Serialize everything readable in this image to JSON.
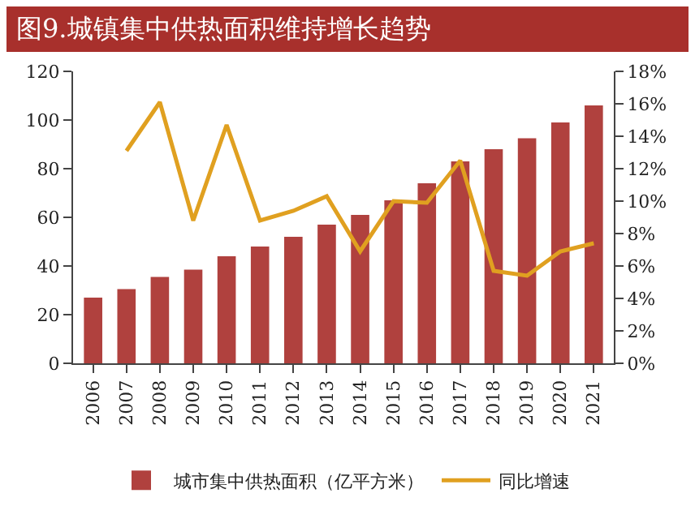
{
  "chart_data": {
    "type": "bar",
    "title": "图9.城镇集中供热面积维持增长趋势",
    "categories": [
      "2006",
      "2007",
      "2008",
      "2009",
      "2010",
      "2011",
      "2012",
      "2013",
      "2014",
      "2015",
      "2016",
      "2017",
      "2018",
      "2019",
      "2020",
      "2021"
    ],
    "series": [
      {
        "name": "城市集中供热面积（亿平方米）",
        "color": "#b0413e",
        "values": [
          27,
          30.5,
          35.5,
          38.5,
          44,
          48,
          52,
          57,
          61,
          67,
          74,
          83,
          88,
          92.5,
          99,
          106
        ]
      },
      {
        "name": "同比增速",
        "type": "line",
        "axis": "y2",
        "color": "#e0a020",
        "marker": "none",
        "values": [
          null,
          13.1,
          16.1,
          8.8,
          14.7,
          8.8,
          9.4,
          10.3,
          6.9,
          10.0,
          9.9,
          12.5,
          5.7,
          5.4,
          6.9,
          7.4
        ]
      }
    ],
    "ylim": [
      0,
      120
    ],
    "yticks": [
      0,
      20,
      40,
      60,
      80,
      100,
      120
    ],
    "y2lim": [
      0,
      18
    ],
    "y2ticks": [
      {
        "value": 0,
        "label": "0%"
      },
      {
        "value": 2,
        "label": "2%"
      },
      {
        "value": 4,
        "label": "4%"
      },
      {
        "value": 6,
        "label": "6%"
      },
      {
        "value": 8,
        "label": "8%"
      },
      {
        "value": 10,
        "label": "10%"
      },
      {
        "value": 12,
        "label": "12%"
      },
      {
        "value": 14,
        "label": "14%"
      },
      {
        "value": 16,
        "label": "16%"
      },
      {
        "value": 18,
        "label": "18%"
      }
    ],
    "grid": false,
    "legend": "bottom"
  }
}
